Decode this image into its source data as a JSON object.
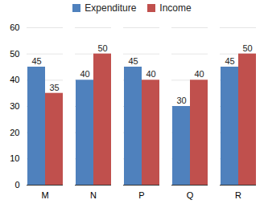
{
  "chart_data": {
    "type": "bar",
    "categories": [
      "M",
      "N",
      "P",
      "Q",
      "R"
    ],
    "series": [
      {
        "name": "Expenditure",
        "color": "#4f81bd",
        "values": [
          45,
          40,
          45,
          30,
          45
        ]
      },
      {
        "name": "Income",
        "color": "#c0504d",
        "values": [
          35,
          50,
          40,
          40,
          50
        ]
      }
    ],
    "ylim": [
      0,
      60
    ],
    "yticks": [
      0,
      10,
      20,
      30,
      40,
      50,
      60
    ],
    "grid": true,
    "legend": "top",
    "data_labels": true
  }
}
